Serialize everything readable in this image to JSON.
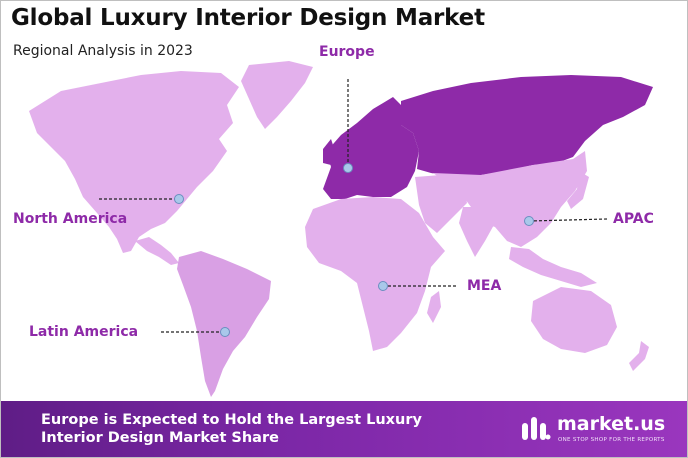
{
  "title": "Global Luxury Interior Design Market",
  "subtitle": "Regional Analysis in 2023",
  "regions": {
    "europe": "Europe",
    "north_america": "North America",
    "apac": "APAC",
    "mea": "MEA",
    "latin_america": "Latin America"
  },
  "highlighted_region": "Europe",
  "colors": {
    "highlight": "#8e2aa8",
    "region_fill": "#e3b0ec",
    "label": "#8e2aa8",
    "marker": "#a9c8ea",
    "banner": "#7b27a6"
  },
  "footer": {
    "headline": "Europe is Expected to Hold the Largest Luxury Interior Design Market Share",
    "brand_name": "market.us",
    "brand_tagline": "ONE STOP SHOP FOR THE REPORTS"
  }
}
